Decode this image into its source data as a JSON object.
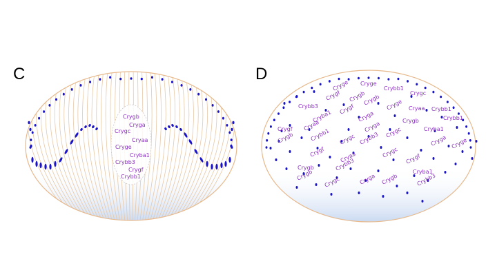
{
  "panels": [
    {
      "id": "C",
      "letter": "C",
      "arrangement": "clustered",
      "labels": [
        "Crygb",
        "Cryga",
        "Crygc",
        "Cryaa",
        "Cryge",
        "Cryba1",
        "Crybb3",
        "Crygf",
        "Crybb1"
      ]
    },
    {
      "id": "D",
      "letter": "D",
      "arrangement": "dispersed",
      "labels": [
        "Cryge",
        "Crybb1",
        "Crygc",
        "Cryge",
        "Crygf",
        "Crygb",
        "Crybb3",
        "Crygb",
        "Cryge",
        "Cryaa",
        "Crybb1",
        "Cryba1",
        "Crygf",
        "Cryga",
        "Crygb",
        "Crybb1",
        "Cryaa",
        "Cryga",
        "Crygc",
        "Cryba1",
        "Crygf",
        "Crygb",
        "Crybb1",
        "Crygc",
        "Crybb3",
        "Cryga",
        "Cryge",
        "Crygf",
        "Cryaa",
        "Crygc",
        "Crygf",
        "Crygb",
        "Crybb3",
        "Cryba1",
        "Crygb",
        "Crygc",
        "Cryga",
        "Crygb",
        "Crybb3"
      ]
    }
  ],
  "colors": {
    "outline": "#e7b98c",
    "fiber": "#e7c8a6",
    "nucleus": "#1a14c8",
    "label": "#8a2fc0",
    "base_gradient": "#bcd0ee"
  }
}
